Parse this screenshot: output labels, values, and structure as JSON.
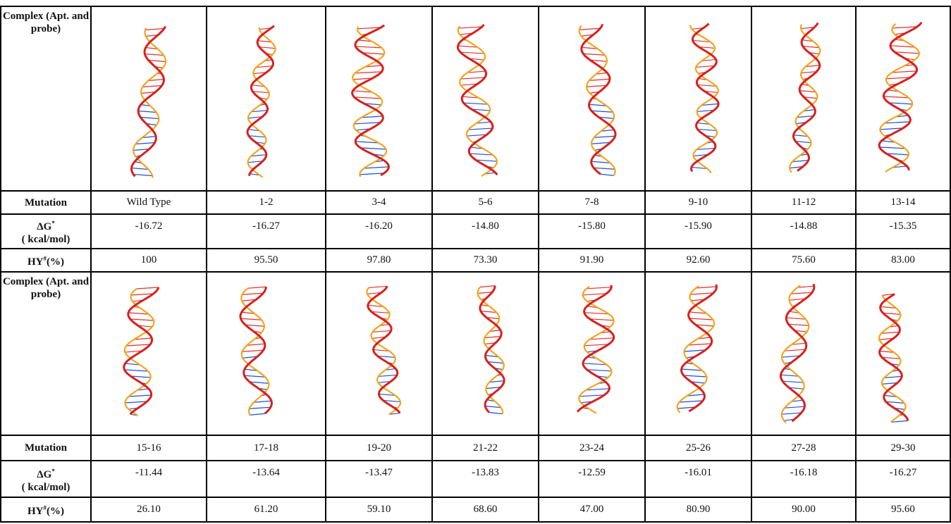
{
  "labels": {
    "complex": "Complex (Apt. and probe)",
    "mutation": "Mutation",
    "dg_symbol": "ΔG",
    "dg_mark": "*",
    "dg_unit": "( kcal/mol)",
    "hy_symbol": "HY",
    "hy_mark": "#",
    "hy_unit": "(%)"
  },
  "blocks": [
    {
      "mutation": [
        "Wild Type",
        "1-2",
        "3-4",
        "5-6",
        "7-8",
        "9-10",
        "11-12",
        "13-14"
      ],
      "dg": [
        "-16.72",
        "-16.27",
        "-16.20",
        "-14.80",
        "-15.80",
        "-15.90",
        "-14.88",
        "-15.35"
      ],
      "hy": [
        "100",
        "95.50",
        "97.80",
        "73.30",
        "91.90",
        "92.60",
        "75.60",
        "83.00"
      ]
    },
    {
      "mutation": [
        "15-16",
        "17-18",
        "19-20",
        "21-22",
        "23-24",
        "25-26",
        "27-28",
        "29-30"
      ],
      "dg": [
        "-11.44",
        "-13.64",
        "-13.47",
        "-13.83",
        "-12.59",
        "-16.01",
        "-16.18",
        "-16.27"
      ],
      "hy": [
        "26.10",
        "61.20",
        "59.10",
        "68.60",
        "47.00",
        "80.90",
        "90.00",
        "95.60"
      ]
    }
  ]
}
